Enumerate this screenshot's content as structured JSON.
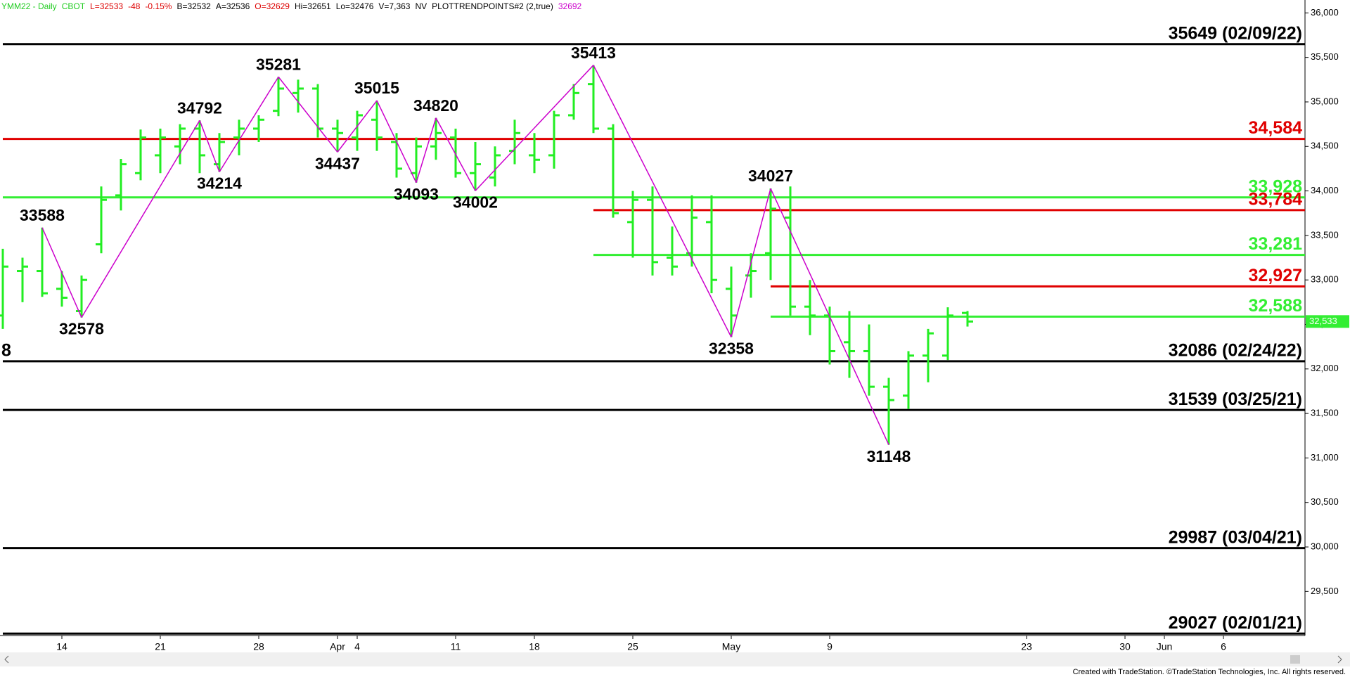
{
  "chart_data": {
    "type": "ohlc",
    "header": [
      {
        "text": "YMM22 - Daily",
        "color": "#22cc22"
      },
      {
        "text": "CBOT",
        "color": "#22cc22"
      },
      {
        "text": "L=32533",
        "color": "#dd0000"
      },
      {
        "text": "-48",
        "color": "#dd0000"
      },
      {
        "text": "-0.15%",
        "color": "#dd0000"
      },
      {
        "text": "B=32532",
        "color": "#000000"
      },
      {
        "text": "A=32536",
        "color": "#000000"
      },
      {
        "text": "O=32629",
        "color": "#dd0000"
      },
      {
        "text": "Hi=32651",
        "color": "#000000"
      },
      {
        "text": "Lo=32476",
        "color": "#000000"
      },
      {
        "text": "V=7,363",
        "color": "#000000"
      },
      {
        "text": "NV",
        "color": "#000000"
      },
      {
        "text": "PLOTTRENDPOINTS#2 (2,true)",
        "color": "#000000"
      },
      {
        "text": "32692",
        "color": "#cc00cc"
      }
    ],
    "categories": [
      null,
      null,
      null,
      "14",
      null,
      null,
      null,
      null,
      "21",
      null,
      null,
      null,
      null,
      "28",
      null,
      null,
      null,
      "Apr",
      "4",
      null,
      null,
      null,
      null,
      "11",
      null,
      null,
      null,
      "18",
      null,
      null,
      null,
      null,
      "25",
      null,
      null,
      null,
      null,
      "May",
      null,
      null,
      null,
      null,
      "9",
      null,
      null,
      null,
      null,
      null,
      null,
      null,
      null,
      null,
      "23",
      null,
      null,
      null,
      null,
      "30",
      null,
      "Jun",
      null,
      null,
      "6",
      null,
      null,
      null,
      null
    ],
    "color": "#22ee22",
    "open": [
      32600,
      33100,
      33100,
      32900,
      32650,
      33400,
      33950,
      34200,
      34400,
      34500,
      34700,
      34300,
      34600,
      34700,
      34900,
      35100,
      35150,
      34700,
      34600,
      34800,
      34550,
      34200,
      34500,
      34600,
      34200,
      34150,
      34450,
      34400,
      34400,
      34850,
      35200,
      34700,
      33650,
      33900,
      33250,
      33300,
      33650,
      32900,
      33050,
      33300,
      33700,
      32700,
      32600,
      32300,
      32200,
      31800,
      31700,
      32150,
      32150,
      32629,
      null,
      null,
      null,
      null,
      null,
      null,
      null,
      null,
      null,
      null,
      null,
      null,
      null,
      null,
      null,
      null,
      null
    ],
    "high": [
      33350,
      33250,
      33588,
      33100,
      33050,
      34050,
      34360,
      34690,
      34700,
      34750,
      34792,
      34650,
      34800,
      34850,
      35281,
      35250,
      35200,
      34800,
      34900,
      35015,
      34650,
      34600,
      34820,
      34700,
      34550,
      34500,
      34800,
      34650,
      34900,
      35200,
      35413,
      34750,
      34000,
      34050,
      33600,
      33950,
      33950,
      33150,
      33300,
      34027,
      34050,
      33000,
      32700,
      32650,
      32500,
      31900,
      32200,
      32450,
      32692,
      32651,
      null,
      null,
      null,
      null,
      null,
      null,
      null,
      null,
      null,
      null,
      null,
      null,
      null,
      null,
      null,
      null,
      null
    ],
    "low": [
      32450,
      32750,
      32810,
      32700,
      32578,
      33300,
      33780,
      34120,
      34200,
      34300,
      34200,
      34214,
      34400,
      34550,
      34840,
      34880,
      34600,
      34437,
      34450,
      34450,
      34150,
      34093,
      34350,
      34150,
      34002,
      34050,
      34300,
      34200,
      34250,
      34800,
      34650,
      33700,
      33250,
      33050,
      33050,
      33150,
      32850,
      32358,
      32800,
      33000,
      32600,
      32380,
      32050,
      31900,
      31700,
      31148,
      31550,
      31850,
      32100,
      32476,
      null,
      null,
      null,
      null,
      null,
      null,
      null,
      null,
      null,
      null,
      null,
      null,
      null,
      null,
      null,
      null,
      null
    ],
    "close": [
      33150,
      33150,
      32850,
      32800,
      33000,
      33900,
      34300,
      34600,
      34600,
      34700,
      34400,
      34550,
      34700,
      34800,
      35150,
      35150,
      34700,
      34650,
      34850,
      34600,
      34250,
      34500,
      34650,
      34200,
      34300,
      34400,
      34650,
      34350,
      34850,
      35100,
      34700,
      33750,
      33900,
      33200,
      33150,
      33700,
      33000,
      32600,
      33100,
      33800,
      32700,
      32600,
      32200,
      32200,
      31800,
      31650,
      32150,
      32400,
      32600,
      32533,
      null,
      null,
      null,
      null,
      null,
      null,
      null,
      null,
      null,
      null,
      null,
      null,
      null,
      null,
      null,
      null,
      null
    ],
    "zigzag": {
      "color": "#cc00cc",
      "values": [
        null,
        null,
        33588,
        null,
        32578,
        null,
        null,
        null,
        null,
        null,
        34792,
        34214,
        null,
        null,
        35281,
        null,
        null,
        34437,
        null,
        35015,
        null,
        34093,
        34820,
        null,
        34002,
        null,
        null,
        null,
        null,
        null,
        35413,
        null,
        null,
        null,
        null,
        null,
        null,
        32358,
        null,
        34027,
        null,
        null,
        null,
        null,
        null,
        31148,
        null,
        null,
        null,
        null,
        null,
        null,
        null,
        null,
        null,
        null,
        null,
        null,
        null,
        null,
        null,
        null,
        null,
        null,
        null,
        null,
        null
      ]
    },
    "levels": [
      {
        "value": 35649,
        "label": "35649 (02/09/22)",
        "color": "#000000",
        "start": 0
      },
      {
        "value": 34584,
        "label": "34,584",
        "color": "#e00000",
        "start": 0
      },
      {
        "value": 33928,
        "label": "33,928",
        "color": "#33ee33",
        "start": 0
      },
      {
        "value": 33784,
        "label": "33,784",
        "color": "#e00000",
        "start": 30
      },
      {
        "value": 33281,
        "label": "33,281",
        "color": "#33ee33",
        "start": 30
      },
      {
        "value": 32927,
        "label": "32,927",
        "color": "#e00000",
        "start": 39
      },
      {
        "value": 32588,
        "label": "32,588",
        "color": "#33ee33",
        "start": 39
      },
      {
        "value": 32086,
        "label": "32086 (02/24/22)",
        "color": "#000000",
        "start": 0
      },
      {
        "value": 31539,
        "label": "31539 (03/25/21)",
        "color": "#000000",
        "start": 0
      },
      {
        "value": 29987,
        "label": "29987 (03/04/21)",
        "color": "#000000",
        "start": 0
      },
      {
        "value": 29027,
        "label": "29027 (02/01/21)",
        "color": "#000000",
        "start": 0
      }
    ],
    "cut_label": "8",
    "last": {
      "value": 32533,
      "label": "32,533",
      "color": "#33ee33"
    },
    "ylim": [
      29005,
      36145
    ],
    "yticks": [
      {
        "value": 29500,
        "label": "29,500"
      },
      {
        "value": 30000,
        "label": "30,000"
      },
      {
        "value": 30500,
        "label": "30,500"
      },
      {
        "value": 31000,
        "label": "31,000"
      },
      {
        "value": 31500,
        "label": "31,500"
      },
      {
        "value": 32000,
        "label": "32,000"
      },
      {
        "value": 32500,
        "label": "32,500"
      },
      {
        "value": 33000,
        "label": "33,000"
      },
      {
        "value": 33500,
        "label": "33,500"
      },
      {
        "value": 34000,
        "label": "34,000"
      },
      {
        "value": 34500,
        "label": "34,500"
      },
      {
        "value": 35000,
        "label": "35,000"
      },
      {
        "value": 35500,
        "label": "35,500"
      },
      {
        "value": 36000,
        "label": "36,000"
      }
    ],
    "footer": "Created with TradeStation. ©TradeStation Technologies, Inc. All rights reserved."
  }
}
